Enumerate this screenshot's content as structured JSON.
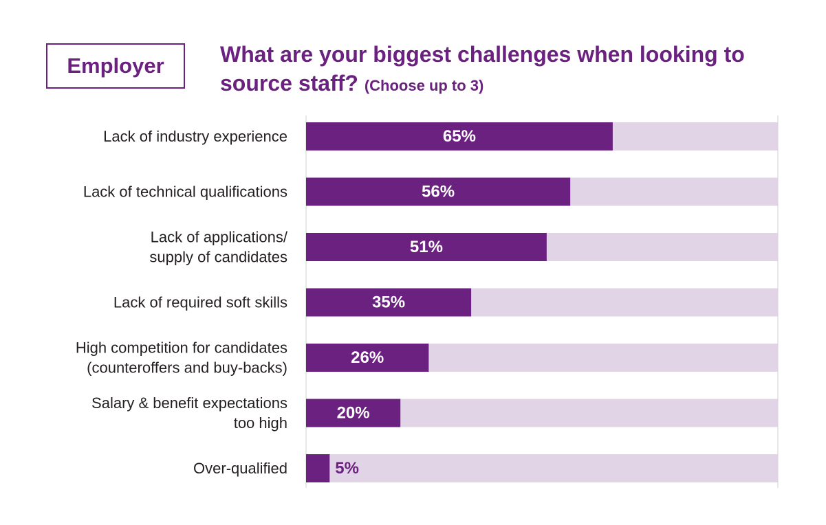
{
  "badge": "Employer",
  "title": {
    "main": "What are your biggest challenges when looking to source staff?",
    "sub": "(Choose up to 3)"
  },
  "colors": {
    "accent": "#6b2180",
    "track": "#e2d4e7",
    "text": "#231f20",
    "axis": "#d0d0d0"
  },
  "chart_data": {
    "type": "bar",
    "orientation": "horizontal",
    "title": "What are your biggest challenges when looking to source staff? (Choose up to 3)",
    "categories": [
      [
        "Lack of industry experience"
      ],
      [
        "Lack of technical qualifications"
      ],
      [
        "Lack of applications/",
        "supply of candidates"
      ],
      [
        "Lack of required soft skills"
      ],
      [
        "High competition for candidates",
        "(counteroffers and buy-backs)"
      ],
      [
        "Salary & benefit expectations",
        "too high"
      ],
      [
        "Over-qualified"
      ]
    ],
    "values": [
      65,
      56,
      51,
      35,
      26,
      20,
      5
    ],
    "value_labels": [
      "65%",
      "56%",
      "51%",
      "35%",
      "26%",
      "20%",
      "5%"
    ],
    "unit": "%",
    "xlim": [
      0,
      100
    ],
    "grid": false,
    "legend": "none"
  }
}
